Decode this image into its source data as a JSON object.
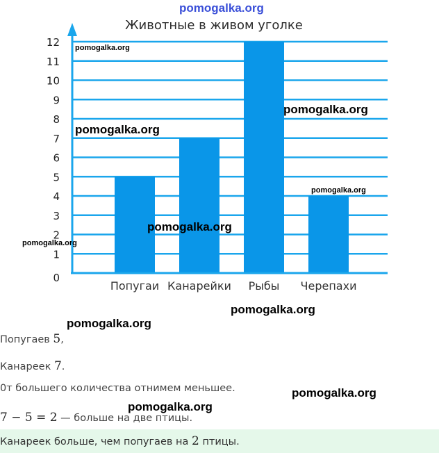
{
  "watermark": "pomogalka.org",
  "chart_data": {
    "type": "bar",
    "title": "Животные в живом уголке",
    "categories": [
      "Попугаи",
      "Канарейки",
      "Рыбы",
      "Черепахи"
    ],
    "values": [
      5,
      7,
      12,
      4
    ],
    "yticks": [
      "0",
      "1",
      "2",
      "3",
      "4",
      "5",
      "6",
      "7",
      "8",
      "9",
      "10",
      "11",
      "12"
    ],
    "ylim": [
      0,
      12
    ],
    "grid": true,
    "bar_color": "#0a96e8",
    "grid_color": "#1aa6ec",
    "axis_color": "#1aa6ec"
  },
  "solution": {
    "parrots_label": "Попугаев",
    "parrots_value": "5",
    "parrots_end": ",",
    "canaries_label": "Канареек",
    "canaries_value": "7",
    "canaries_end": ".",
    "method": "0т большего количества отнимем меньшее.",
    "equation": "7 − 5 = 2",
    "equation_text": "— больше на две птицы.",
    "answer_text": "Канареек больше, чем попугаев на",
    "answer_value": "2",
    "answer_end": "птицы."
  }
}
